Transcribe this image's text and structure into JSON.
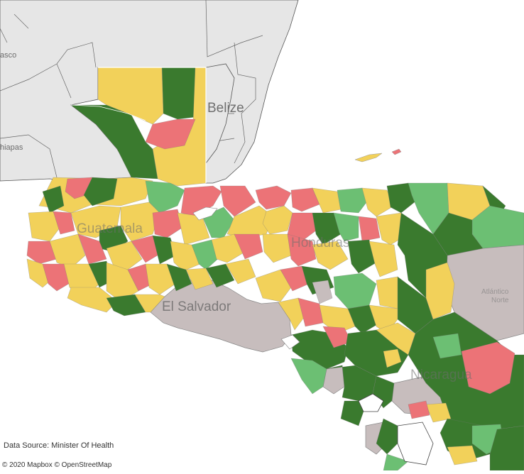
{
  "map": {
    "colors": {
      "water": "#ffffff",
      "land": "#e6e6e6",
      "border": "#444444",
      "high": "#3a7a2e",
      "medium_high": "#6cbf73",
      "medium": "#f2d15a",
      "low": "#ec7377",
      "no_data": "#c7bdbd"
    },
    "labels": {
      "belize": "Belize",
      "guatemala": "Guatemala",
      "honduras": "Honduras",
      "el_salvador": "El Salvador",
      "nicaragua": "Nicaragua",
      "tabasco_fragment": "asco",
      "chiapas_fragment": "hiapas",
      "atlantico_norte_1": "Atlántico",
      "atlantico_norte_2": "Norte"
    }
  },
  "footer": {
    "data_source": "Data Source:  Minister Of Health",
    "attribution": "© 2020 Mapbox  © OpenStreetMap"
  }
}
